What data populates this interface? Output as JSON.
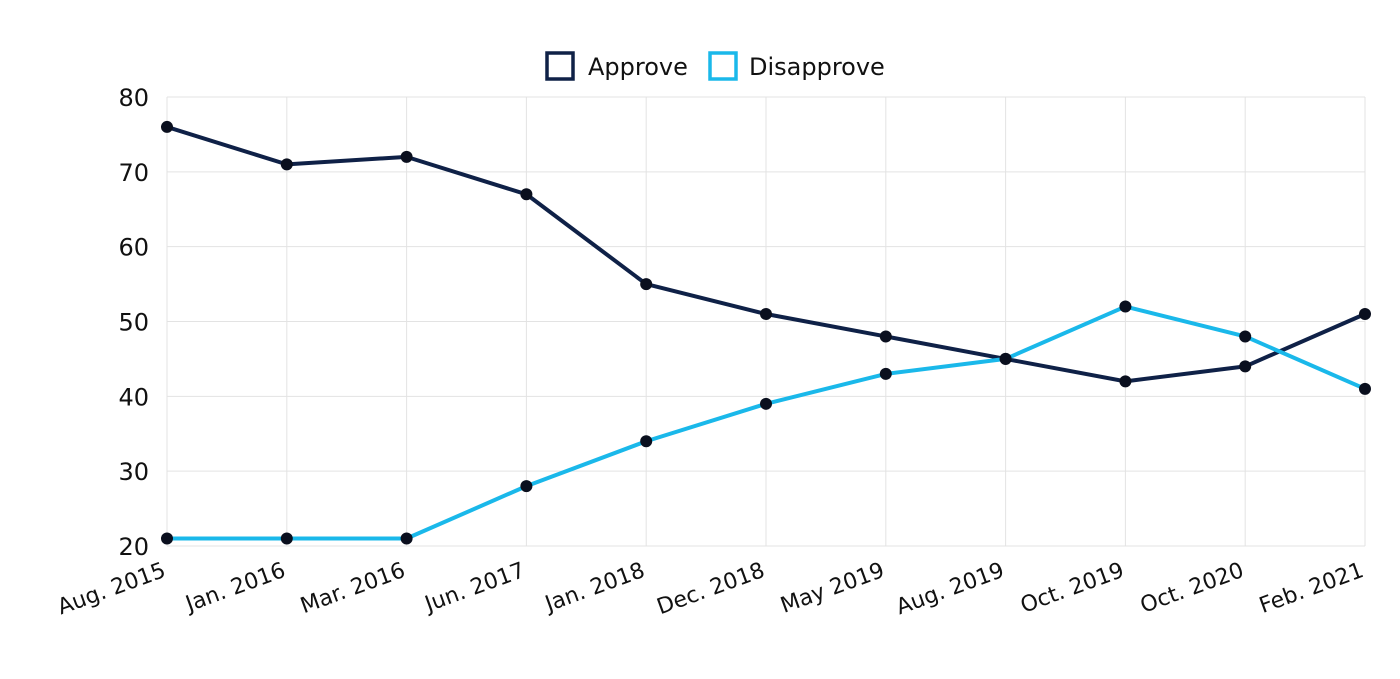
{
  "chart_data": {
    "type": "line",
    "title": "",
    "xlabel": "",
    "ylabel": "",
    "categories": [
      "Aug. 2015",
      "Jan. 2016",
      "Mar. 2016",
      "Jun. 2017",
      "Jan. 2018",
      "Dec. 2018",
      "May 2019",
      "Aug. 2019",
      "Oct. 2019",
      "Oct. 2020",
      "Feb. 2021"
    ],
    "series": [
      {
        "name": "Approve",
        "color": "#0f2147",
        "values": [
          76,
          71,
          72,
          67,
          55,
          51,
          48,
          45,
          42,
          44,
          51
        ]
      },
      {
        "name": "Disapprove",
        "color": "#1ab8ea",
        "values": [
          21,
          21,
          21,
          28,
          34,
          39,
          43,
          45,
          52,
          48,
          41
        ]
      }
    ],
    "ylim": [
      20,
      80
    ],
    "yticks": [
      20,
      30,
      40,
      50,
      60,
      70,
      80
    ],
    "grid": true,
    "legend_position": "top-center",
    "marker_color": "#0a0f1e"
  }
}
